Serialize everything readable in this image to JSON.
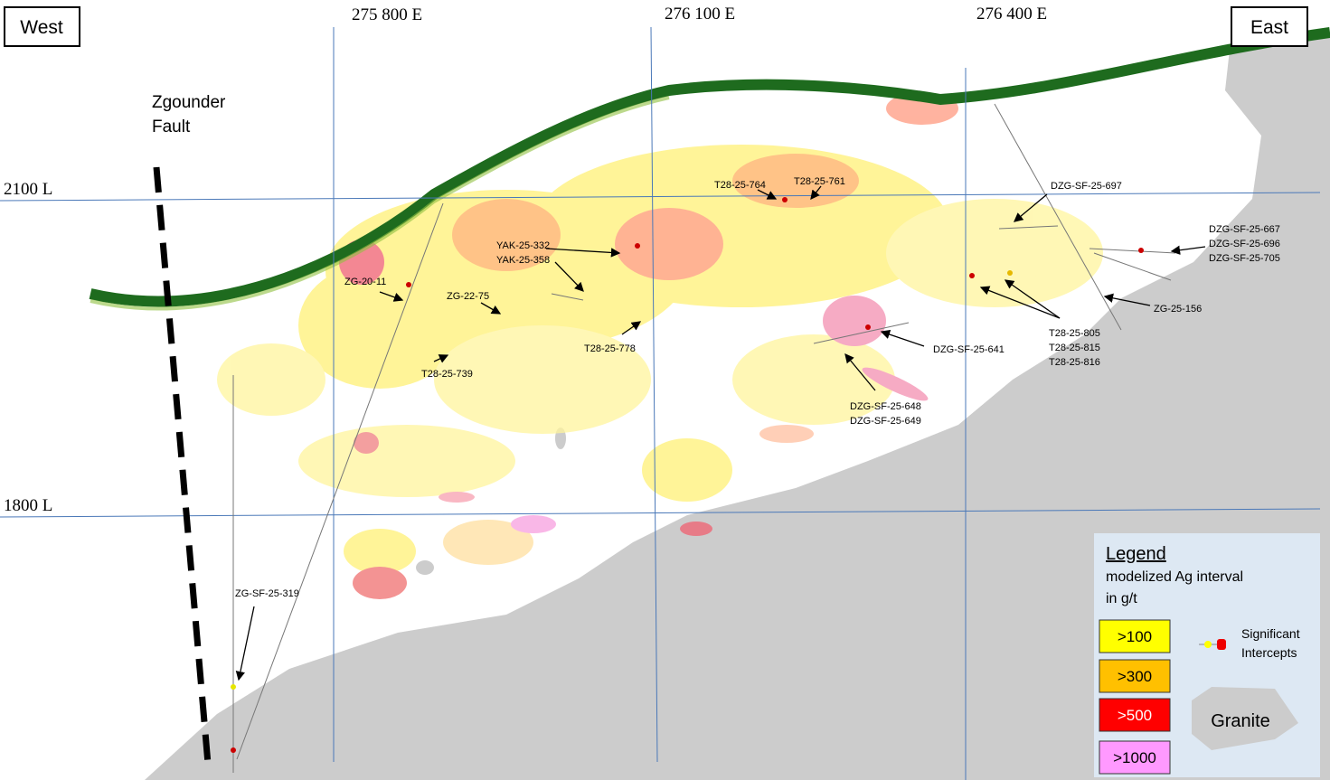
{
  "frame": {
    "west": "West",
    "east": "East"
  },
  "eastings": [
    "275 800 E",
    "276 100 E",
    "276 400 E"
  ],
  "levels": [
    "2100 L",
    "1800 L"
  ],
  "fault": {
    "lines": [
      "Zgounder",
      "Fault"
    ]
  },
  "holes": [
    {
      "lines": [
        "T28-25-764"
      ]
    },
    {
      "lines": [
        "T28-25-761"
      ]
    },
    {
      "lines": [
        "DZG-SF-25-697"
      ]
    },
    {
      "lines": [
        "DZG-SF-25-667",
        "DZG-SF-25-696",
        "DZG-SF-25-705"
      ]
    },
    {
      "lines": [
        "YAK-25-332",
        "YAK-25-358"
      ]
    },
    {
      "lines": [
        "ZG-20-11"
      ]
    },
    {
      "lines": [
        "ZG-22-75"
      ]
    },
    {
      "lines": [
        "T28-25-778"
      ]
    },
    {
      "lines": [
        "T28-25-739"
      ]
    },
    {
      "lines": [
        "ZG-25-156"
      ]
    },
    {
      "lines": [
        "T28-25-805",
        "T28-25-815",
        "T28-25-816"
      ]
    },
    {
      "lines": [
        "DZG-SF-25-641"
      ]
    },
    {
      "lines": [
        "DZG-SF-25-648",
        "DZG-SF-25-649"
      ]
    },
    {
      "lines": [
        "ZG-SF-25-319"
      ]
    }
  ],
  "legend": {
    "title": "Legend",
    "subtitle": [
      "modelized Ag interval",
      "in g/t"
    ],
    "classes": [
      ">100",
      ">300",
      ">500",
      ">1000"
    ],
    "intercepts": [
      "Significant",
      "Intercepts"
    ],
    "granite": "Granite"
  }
}
